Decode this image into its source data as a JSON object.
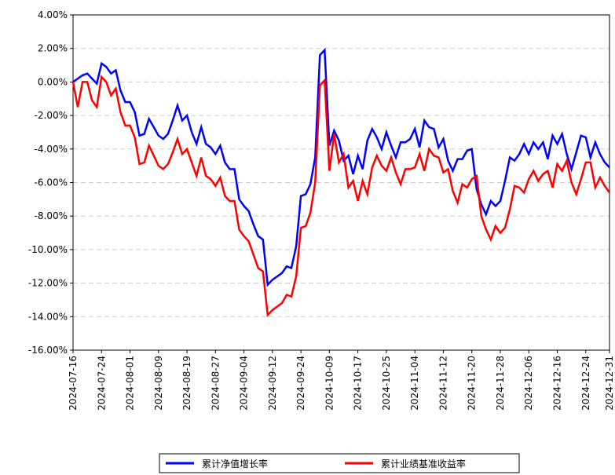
{
  "chart_data": {
    "type": "line",
    "categories": [
      "2024-07-16",
      null,
      null,
      null,
      null,
      null,
      "2024-07-24",
      null,
      null,
      null,
      null,
      null,
      "2024-08-01",
      null,
      null,
      null,
      null,
      null,
      "2024-08-09",
      null,
      null,
      null,
      null,
      null,
      "2024-08-19",
      null,
      null,
      null,
      null,
      null,
      "2024-08-27",
      null,
      null,
      null,
      null,
      null,
      "2024-09-04",
      null,
      null,
      null,
      null,
      null,
      "2024-09-12",
      null,
      null,
      null,
      null,
      null,
      "2024-09-24",
      null,
      null,
      null,
      null,
      null,
      "2024-10-09",
      null,
      null,
      null,
      null,
      null,
      "2024-10-17",
      null,
      null,
      null,
      null,
      null,
      "2024-10-25",
      null,
      null,
      null,
      null,
      null,
      "2024-11-04",
      null,
      null,
      null,
      null,
      null,
      "2024-11-12",
      null,
      null,
      null,
      null,
      null,
      "2024-11-20",
      null,
      null,
      null,
      null,
      null,
      "2024-11-28",
      null,
      null,
      null,
      null,
      null,
      "2024-12-06",
      null,
      null,
      null,
      null,
      null,
      "2024-12-16",
      null,
      null,
      null,
      null,
      null,
      "2024-12-24",
      null,
      null,
      null,
      null,
      "2024-12-31"
    ],
    "series": [
      {
        "name": "累计净值增长率",
        "color": "#0000ff",
        "values": [
          0.0,
          0.2,
          0.4,
          0.5,
          0.2,
          -0.1,
          1.1,
          0.9,
          0.5,
          0.7,
          -0.5,
          -1.2,
          -1.2,
          -1.8,
          -3.2,
          -3.1,
          -2.2,
          -2.7,
          -3.2,
          -3.4,
          -3.1,
          -2.3,
          -1.4,
          -2.3,
          -2.0,
          -3.0,
          -3.7,
          -2.7,
          -3.7,
          -3.9,
          -4.3,
          -3.8,
          -4.8,
          -5.2,
          -5.2,
          -7.0,
          -7.4,
          -7.7,
          -8.5,
          -9.2,
          -9.4,
          -12.1,
          -11.8,
          -11.6,
          -11.4,
          -11.0,
          -11.1,
          -9.8,
          -6.8,
          -6.7,
          -6.1,
          -4.5,
          1.6,
          1.9,
          -3.8,
          -2.9,
          -3.5,
          -4.7,
          -4.4,
          -5.5,
          -4.4,
          -5.2,
          -3.5,
          -2.8,
          -3.3,
          -4.0,
          -3.0,
          -3.8,
          -4.5,
          -3.6,
          -3.6,
          -3.4,
          -2.8,
          -3.9,
          -2.3,
          -2.7,
          -2.8,
          -3.9,
          -3.4,
          -4.7,
          -5.3,
          -4.6,
          -4.6,
          -4.1,
          -4.0,
          -6.4,
          -7.3,
          -7.9,
          -7.1,
          -7.4,
          -7.1,
          -5.9,
          -4.5,
          -4.7,
          -4.3,
          -3.7,
          -4.3,
          -3.6,
          -4.0,
          -3.6,
          -4.6,
          -3.2,
          -3.7,
          -3.1,
          -4.3,
          -5.2,
          -4.2,
          -3.2,
          -3.3,
          -4.5,
          -3.6,
          -4.3,
          -4.8,
          -5.1
        ]
      },
      {
        "name": "累计业绩基准收益率",
        "color": "#ff0000",
        "values": [
          0.0,
          -1.5,
          0.0,
          0.0,
          -1.1,
          -1.5,
          0.3,
          0.0,
          -0.8,
          -0.4,
          -1.8,
          -2.6,
          -2.6,
          -3.3,
          -4.9,
          -4.8,
          -3.8,
          -4.4,
          -5.0,
          -5.2,
          -4.9,
          -4.2,
          -3.4,
          -4.3,
          -4.0,
          -4.8,
          -5.6,
          -4.5,
          -5.6,
          -5.8,
          -6.2,
          -5.7,
          -6.8,
          -7.1,
          -7.1,
          -8.8,
          -9.2,
          -9.5,
          -10.3,
          -11.1,
          -11.3,
          -13.9,
          -13.6,
          -13.4,
          -13.2,
          -12.7,
          -12.8,
          -11.6,
          -8.7,
          -8.6,
          -7.8,
          -6.0,
          -0.2,
          0.1,
          -5.3,
          -3.1,
          -4.8,
          -4.3,
          -6.3,
          -5.9,
          -7.1,
          -5.9,
          -6.7,
          -5.1,
          -4.4,
          -5.0,
          -5.3,
          -4.5,
          -5.4,
          -6.1,
          -5.2,
          -5.2,
          -5.1,
          -4.3,
          -5.3,
          -4.0,
          -4.4,
          -4.5,
          -5.4,
          -5.2,
          -6.5,
          -7.2,
          -6.1,
          -6.3,
          -5.8,
          -5.6,
          -8.0,
          -8.8,
          -9.4,
          -8.6,
          -9.0,
          -8.7,
          -7.6,
          -6.2,
          -6.3,
          -6.6,
          -5.8,
          -5.3,
          -5.9,
          -5.5,
          -5.3,
          -6.3,
          -4.9,
          -5.3,
          -4.7,
          -6.0,
          -6.7,
          -5.8,
          -4.8,
          -4.8,
          -6.3,
          -5.7,
          -6.2,
          -6.6
        ]
      }
    ],
    "ylim": [
      -16,
      4
    ],
    "yticks": [
      {
        "value": -16,
        "label": "-16.00%"
      },
      {
        "value": -14,
        "label": "-14.00%"
      },
      {
        "value": -12,
        "label": "-12.00%"
      },
      {
        "value": -10,
        "label": "-10.00%"
      },
      {
        "value": -8,
        "label": "-8.00%"
      },
      {
        "value": -6,
        "label": "-6.00%"
      },
      {
        "value": -4,
        "label": "-4.00%"
      },
      {
        "value": -2,
        "label": "-2.00%"
      },
      {
        "value": 0,
        "label": "0.00%"
      },
      {
        "value": 2,
        "label": "2.00%"
      },
      {
        "value": 4,
        "label": "4.00%"
      }
    ],
    "grid": true,
    "legend": "bottom"
  }
}
